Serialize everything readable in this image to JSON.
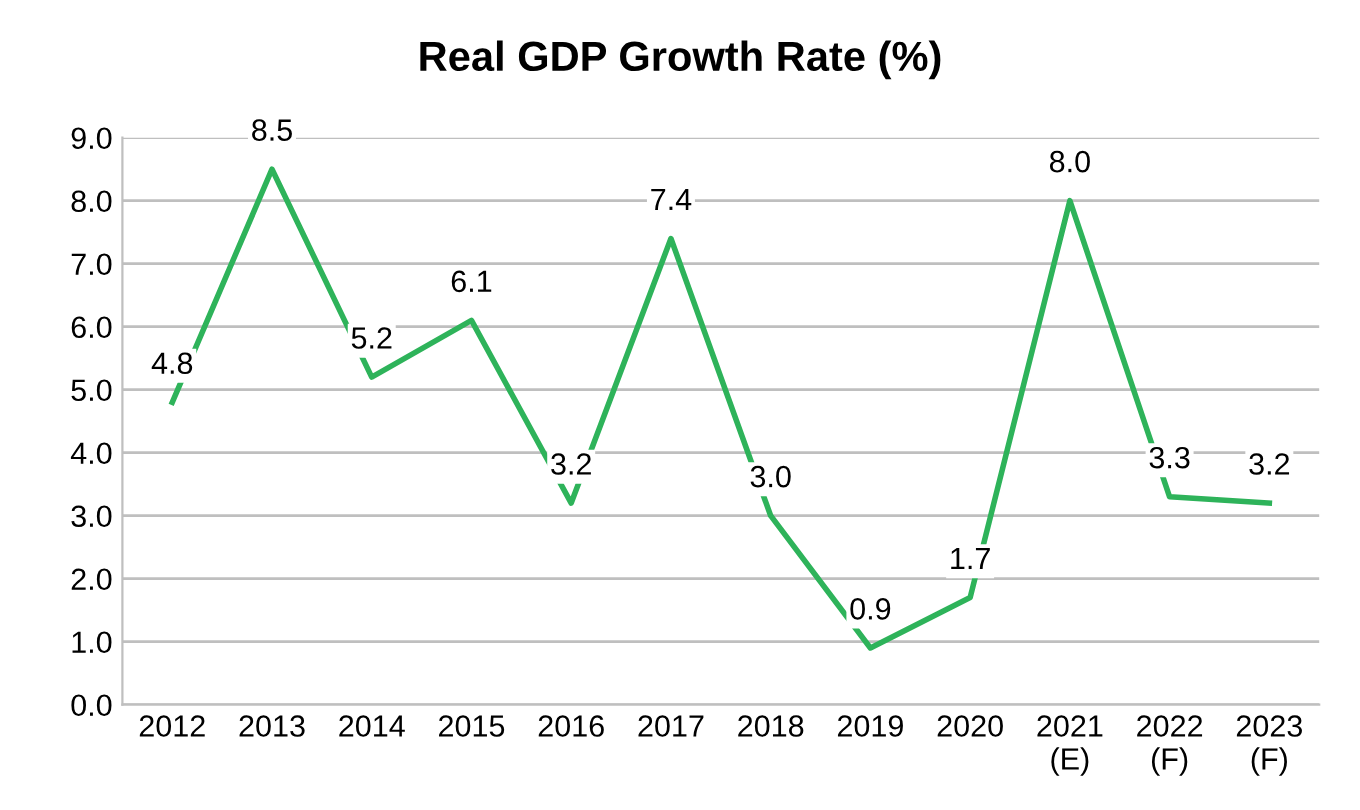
{
  "chart_data": {
    "type": "line",
    "title": "Real GDP Growth Rate (%)",
    "categories": [
      "2012",
      "2013",
      "2014",
      "2015",
      "2016",
      "2017",
      "2018",
      "2019",
      "2020",
      "2021\n(E)",
      "2022\n(F)",
      "2023\n(F)"
    ],
    "series": [
      {
        "color": "#2eb35a",
        "values": [
          4.8,
          8.5,
          5.2,
          6.1,
          3.2,
          7.4,
          3.0,
          0.9,
          1.7,
          8.0,
          3.3,
          3.2
        ],
        "value_labels": [
          "4.8",
          "8.5",
          "5.2",
          "6.1",
          "3.2",
          "7.4",
          "3.0",
          "0.9",
          "1.7",
          "8.0",
          "3.3",
          "3.2"
        ]
      }
    ],
    "ylim": [
      0,
      9
    ],
    "yticks": [
      {
        "value": 0,
        "label": "0.0"
      },
      {
        "value": 1,
        "label": "1.0"
      },
      {
        "value": 2,
        "label": "2.0"
      },
      {
        "value": 3,
        "label": "3.0"
      },
      {
        "value": 4,
        "label": "4.0"
      },
      {
        "value": 5,
        "label": "5.0"
      },
      {
        "value": 6,
        "label": "6.0"
      },
      {
        "value": 7,
        "label": "7.0"
      },
      {
        "value": 8,
        "label": "8.0"
      },
      {
        "value": 9,
        "label": "9.0"
      }
    ],
    "grid": "y",
    "marker": "none",
    "line_style": "solid"
  }
}
